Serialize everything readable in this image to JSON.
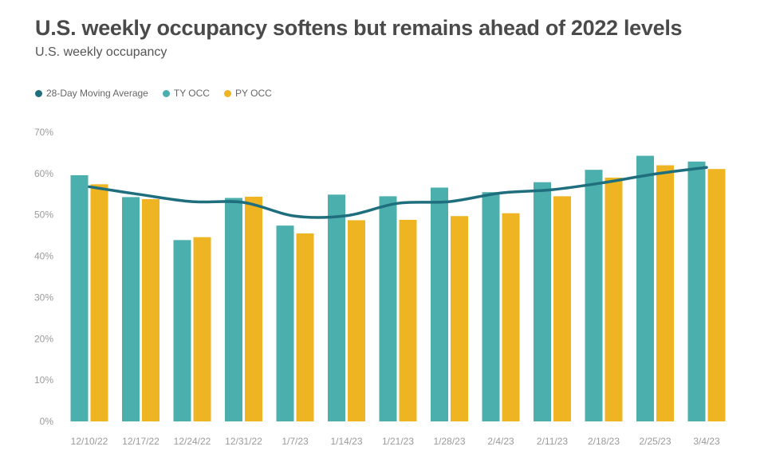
{
  "chart_data": {
    "type": "bar",
    "title": "U.S. weekly occupancy softens but remains ahead of 2022 levels",
    "subtitle": "U.S. weekly occupancy",
    "categories": [
      "12/10/22",
      "12/17/22",
      "12/24/22",
      "12/31/22",
      "1/7/23",
      "1/14/23",
      "1/21/23",
      "1/28/23",
      "2/4/23",
      "2/11/23",
      "2/18/23",
      "2/25/23",
      "3/4/23"
    ],
    "series": [
      {
        "name": "28-Day Moving Average",
        "type": "line",
        "color": "#1f6e7e",
        "values": [
          56.8,
          54.9,
          53.2,
          53.0,
          49.7,
          49.8,
          52.8,
          53.2,
          55.3,
          56.1,
          57.8,
          59.9,
          61.5
        ]
      },
      {
        "name": "TY OCC",
        "type": "bar",
        "color": "#4aafad",
        "values": [
          59.6,
          54.3,
          43.9,
          54.1,
          47.4,
          54.9,
          54.5,
          56.6,
          55.5,
          57.9,
          60.9,
          64.3,
          62.9
        ]
      },
      {
        "name": "PY OCC",
        "type": "bar",
        "color": "#eeb422",
        "values": [
          57.4,
          53.8,
          44.6,
          54.4,
          45.5,
          48.7,
          48.8,
          49.7,
          50.4,
          54.5,
          59.0,
          62.0,
          61.1
        ]
      }
    ],
    "y_ticks": [
      "0%",
      "10%",
      "20%",
      "30%",
      "40%",
      "50%",
      "60%",
      "70%"
    ],
    "ylim": [
      0,
      70
    ],
    "xlabel": "",
    "ylabel": "",
    "legend_position": "top-left",
    "grid": false
  }
}
